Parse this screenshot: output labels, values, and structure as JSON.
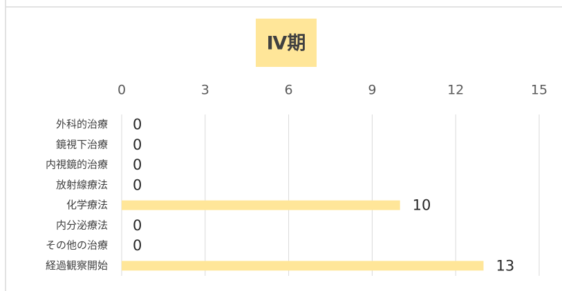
{
  "chart_data": {
    "type": "bar",
    "orientation": "horizontal",
    "title": "Ⅳ期",
    "categories": [
      "外科的治療",
      "鏡視下治療",
      "内視鏡的治療",
      "放射線療法",
      "化学療法",
      "内分泌療法",
      "その他の治療",
      "経過観察開始"
    ],
    "values": [
      0,
      0,
      0,
      0,
      10,
      0,
      0,
      13
    ],
    "color": "#ffe699",
    "xlim": [
      0,
      15
    ],
    "xticks": [
      0,
      3,
      6,
      9,
      12,
      15
    ],
    "grid": true
  }
}
